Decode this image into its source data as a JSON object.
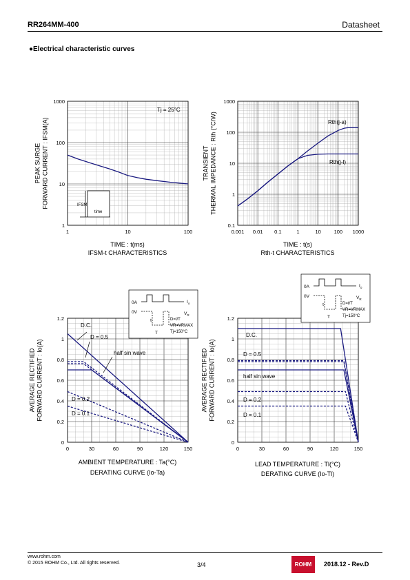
{
  "header": {
    "part_number": "RR264MM-400",
    "doc_type": "Datasheet"
  },
  "section_title": "●Electrical characteristic curves",
  "footer": {
    "website": "www.rohm.com",
    "copyright": "© 2015  ROHM Co., Ltd. All rights reserved.",
    "page": "3/4",
    "logo_text": "ROHM",
    "revision": "2018.12 -  Rev.D"
  },
  "colors": {
    "curve": "#1a1a80",
    "grid": "#a8a8a8",
    "axis": "#000000"
  },
  "chart_data": [
    {
      "id": "ifsm",
      "type": "line",
      "xscale": "log",
      "yscale": "log",
      "xlim": [
        1,
        100
      ],
      "ylim": [
        1,
        1000
      ],
      "xticks": [
        "1",
        "10",
        "100"
      ],
      "yticks": [
        "1",
        "10",
        "100",
        "1000"
      ],
      "xlabel": "TIME : t(ms)",
      "ylabel_lines": [
        "PEAK SURGE",
        "FORWARD CURRENT : IFSM(A)"
      ],
      "caption": "IFSM-t CHARACTERISTICS",
      "annotation": "Tj = 25°C",
      "inset_labels": {
        "current": "IFSM",
        "time": "time"
      },
      "series": [
        {
          "x": [
            1,
            1.5,
            2,
            3,
            5,
            7,
            10,
            15,
            20,
            30,
            50,
            70,
            100
          ],
          "y": [
            50,
            40,
            35,
            29,
            23,
            19.5,
            16,
            14,
            13,
            12,
            11,
            10.5,
            10
          ]
        }
      ]
    },
    {
      "id": "rth",
      "type": "line",
      "xscale": "log",
      "yscale": "log",
      "xlim": [
        0.001,
        1000
      ],
      "ylim": [
        0.1,
        1000
      ],
      "xticks": [
        "0.001",
        "0.01",
        "0.1",
        "1",
        "10",
        "100",
        "1000"
      ],
      "yticks": [
        "0.1",
        "1",
        "10",
        "100",
        "1000"
      ],
      "xlabel": "TIME : t(s)",
      "ylabel_lines": [
        "TRANSIENT",
        "THERMAL IMPEDANCE : Rth (°C/W)"
      ],
      "caption": "Rth-t CHARACTERISTICS",
      "series": [
        {
          "name": "Rth(j-a)",
          "x": [
            0.001,
            0.003,
            0.01,
            0.03,
            0.1,
            0.3,
            1,
            3,
            10,
            30,
            100,
            200,
            300,
            1000
          ],
          "y": [
            0.42,
            0.7,
            1.3,
            2.4,
            4.5,
            8,
            14,
            25,
            45,
            75,
            115,
            135,
            140,
            140
          ]
        },
        {
          "name": "Rth(j-l)",
          "x": [
            0.001,
            0.003,
            0.01,
            0.03,
            0.1,
            0.3,
            0.7,
            1,
            2,
            3,
            10,
            30,
            100,
            1000
          ],
          "y": [
            0.42,
            0.7,
            1.3,
            2.4,
            4.5,
            8,
            12,
            14,
            16.5,
            18,
            19.5,
            20,
            20,
            20
          ]
        }
      ]
    },
    {
      "id": "derating_ta",
      "type": "line",
      "xlim": [
        0,
        150
      ],
      "ylim": [
        0,
        1.2
      ],
      "xticks": [
        "0",
        "30",
        "60",
        "90",
        "120",
        "150"
      ],
      "yticks": [
        "0",
        "0.2",
        "0.4",
        "0.6",
        "0.8",
        "1",
        "1.2"
      ],
      "xlabel": "AMBIENT TEMPERATURE : Ta(°C)",
      "ylabel_lines": [
        "AVERAGE RECTIFIED",
        "FORWARD CURRENT : Io(A)"
      ],
      "caption": "DERATING CURVE (Io-Ta)",
      "inset": {
        "zero": "0A",
        "zerov": "0V",
        "io": "Io",
        "vr": "VR",
        "t": "t",
        "T": "T",
        "lines": [
          "D=t/T",
          "VR=VRMAX",
          "Tj=150°C"
        ]
      },
      "series": [
        {
          "name": "D.C.",
          "style": "solid",
          "x": [
            0,
            150
          ],
          "y": [
            1.05,
            0
          ]
        },
        {
          "name": "D = 0.5",
          "style": "dashed",
          "x": [
            0,
            20,
            150
          ],
          "y": [
            0.78,
            0.78,
            0
          ]
        },
        {
          "name": "half sin wave",
          "style": "solid",
          "x": [
            0,
            30,
            150
          ],
          "y": [
            0.7,
            0.7,
            0
          ]
        },
        {
          "name": "",
          "style": "dashed",
          "x": [
            0,
            20,
            150
          ],
          "y": [
            0.76,
            0.76,
            0
          ]
        },
        {
          "name": "D = 0.2",
          "style": "dashed",
          "x": [
            0,
            150
          ],
          "y": [
            0.49,
            0
          ]
        },
        {
          "name": "D = 0.1",
          "style": "dashed",
          "x": [
            0,
            150
          ],
          "y": [
            0.35,
            0
          ]
        }
      ]
    },
    {
      "id": "derating_tl",
      "type": "line",
      "xlim": [
        0,
        150
      ],
      "ylim": [
        0,
        1.2
      ],
      "xticks": [
        "0",
        "30",
        "60",
        "90",
        "120",
        "150"
      ],
      "yticks": [
        "0",
        "0.2",
        "0.4",
        "0.6",
        "0.8",
        "1",
        "1.2"
      ],
      "xlabel": "LEAD TEMPERATURE : Tl(°C)",
      "ylabel_lines": [
        "AVERAGE RECTIFIED",
        "FORWARD CURRENT : Io(A)"
      ],
      "caption": "DERATING CURVE (Io-Tl)",
      "inset": {
        "zero": "0A",
        "zerov": "0V",
        "io": "Io",
        "vr": "VR",
        "t": "t",
        "T": "T",
        "lines": [
          "D=t/T",
          "VR=VRMAX",
          "Tj=150°C"
        ]
      },
      "series": [
        {
          "name": "D.C.",
          "style": "solid",
          "x": [
            0,
            128,
            150
          ],
          "y": [
            1.1,
            1.1,
            0
          ]
        },
        {
          "name": "D = 0.5",
          "style": "dashed",
          "x": [
            0,
            132,
            150
          ],
          "y": [
            0.79,
            0.79,
            0
          ]
        },
        {
          "name": "",
          "style": "dashed",
          "x": [
            0,
            132,
            150
          ],
          "y": [
            0.78,
            0.78,
            0
          ]
        },
        {
          "name": "half sin wave",
          "style": "solid",
          "x": [
            0,
            132,
            150
          ],
          "y": [
            0.7,
            0.7,
            0
          ]
        },
        {
          "name": "D = 0.2",
          "style": "dashed",
          "x": [
            0,
            134,
            150
          ],
          "y": [
            0.49,
            0.49,
            0
          ]
        },
        {
          "name": "D = 0.1",
          "style": "dashed",
          "x": [
            0,
            134,
            150
          ],
          "y": [
            0.35,
            0.35,
            0
          ]
        }
      ]
    }
  ]
}
